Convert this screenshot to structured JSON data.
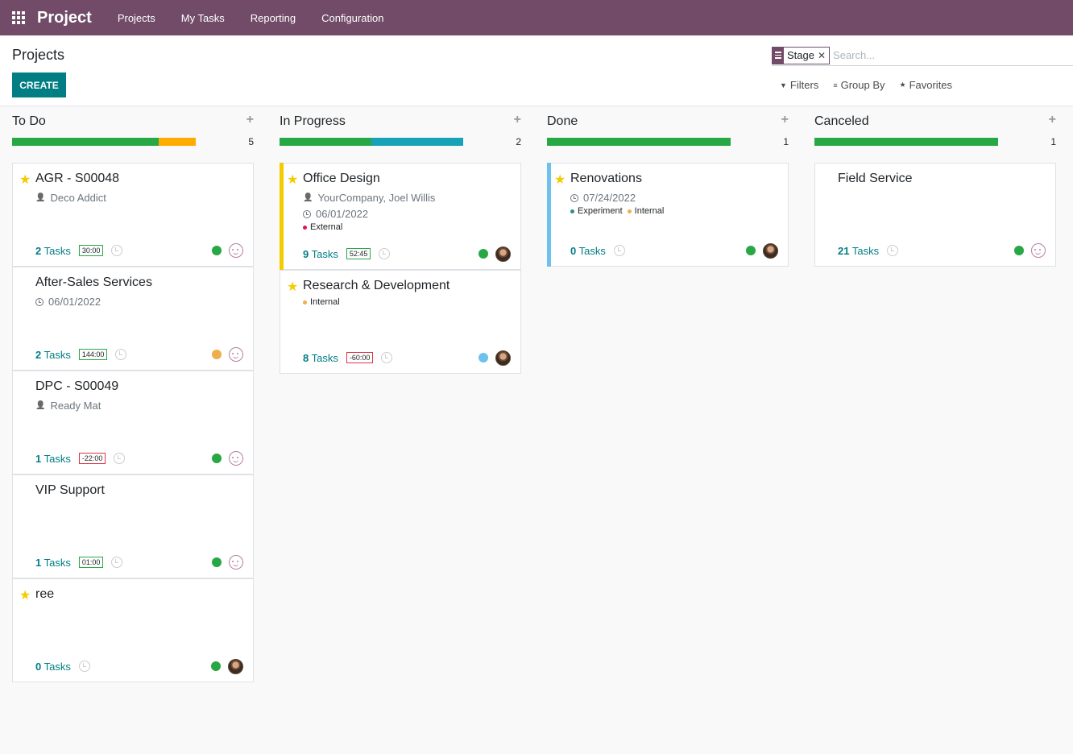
{
  "navbar": {
    "app_title": "Project",
    "menu": [
      "Projects",
      "My Tasks",
      "Reporting",
      "Configuration"
    ]
  },
  "control": {
    "breadcrumb": "Projects",
    "create_label": "CREATE",
    "facet_label": "Stage",
    "search_placeholder": "Search...",
    "filters_label": "Filters",
    "group_by_label": "Group By",
    "favorites_label": "Favorites"
  },
  "colors": {
    "brand": "#714b67",
    "primary": "#017e84",
    "green": "#28a745",
    "orange": "#f0ad4e",
    "star": "#f3cc00"
  },
  "columns": [
    {
      "title": "To Do",
      "count": "5",
      "progress": [
        {
          "color": "#28a745",
          "fraction": 0.8
        },
        {
          "color": "#ffac00",
          "fraction": 0.2
        }
      ],
      "cards": [
        {
          "name": "AGR - S00048",
          "starred": true,
          "customer": "Deco Addict",
          "date": "",
          "tags": [],
          "tasks_count": "2",
          "tasks_label": "Tasks",
          "hours": "30:00",
          "hours_negative": false,
          "status_color": "#28a745",
          "avatar": "smile",
          "ribbon": ""
        },
        {
          "name": "After-Sales Services",
          "starred": false,
          "customer": "",
          "date": "06/01/2022",
          "tags": [],
          "tasks_count": "2",
          "tasks_label": "Tasks",
          "hours": "144:00",
          "hours_negative": false,
          "status_color": "#f0ad4e",
          "avatar": "smile",
          "ribbon": ""
        },
        {
          "name": "DPC - S00049",
          "starred": false,
          "customer": "Ready Mat",
          "date": "",
          "tags": [],
          "tasks_count": "1",
          "tasks_label": "Tasks",
          "hours": "-22:00",
          "hours_negative": true,
          "status_color": "#28a745",
          "avatar": "smile",
          "ribbon": ""
        },
        {
          "name": "VIP Support",
          "starred": false,
          "customer": "",
          "date": "",
          "tags": [],
          "tasks_count": "1",
          "tasks_label": "Tasks",
          "hours": "01:00",
          "hours_negative": false,
          "status_color": "#28a745",
          "avatar": "smile",
          "ribbon": ""
        },
        {
          "name": "ree",
          "starred": true,
          "customer": "",
          "date": "",
          "tags": [],
          "tasks_count": "0",
          "tasks_label": "Tasks",
          "hours": "",
          "hours_negative": false,
          "status_color": "#28a745",
          "avatar": "photo",
          "ribbon": ""
        }
      ]
    },
    {
      "title": "In Progress",
      "count": "2",
      "progress": [
        {
          "color": "#28a745",
          "fraction": 0.5
        },
        {
          "color": "#17a2b8",
          "fraction": 0.5
        }
      ],
      "cards": [
        {
          "name": "Office Design",
          "starred": true,
          "customer": "YourCompany, Joel Willis",
          "date": "06/01/2022",
          "tags": [
            {
              "label": "External",
              "color": "#e0115f"
            }
          ],
          "tasks_count": "9",
          "tasks_label": "Tasks",
          "hours": "52:45",
          "hours_negative": false,
          "status_color": "#28a745",
          "avatar": "photo",
          "ribbon": "#f3cc00"
        },
        {
          "name": "Research & Development",
          "starred": true,
          "customer": "",
          "date": "",
          "tags": [
            {
              "label": "Internal",
              "color": "#f0ad4e"
            }
          ],
          "tasks_count": "8",
          "tasks_label": "Tasks",
          "hours": "-60:00",
          "hours_negative": true,
          "status_color": "#6cc1ed",
          "avatar": "photo",
          "ribbon": ""
        }
      ]
    },
    {
      "title": "Done",
      "count": "1",
      "progress": [
        {
          "color": "#28a745",
          "fraction": 1.0
        }
      ],
      "cards": [
        {
          "name": "Renovations",
          "starred": true,
          "customer": "",
          "date": "07/24/2022",
          "tags": [
            {
              "label": "Experiment",
              "color": "#2e8b8b"
            },
            {
              "label": "Internal",
              "color": "#f0ad4e"
            }
          ],
          "tasks_count": "0",
          "tasks_label": "Tasks",
          "hours": "",
          "hours_negative": false,
          "status_color": "#28a745",
          "avatar": "photo",
          "ribbon": "#6cc1ed"
        }
      ]
    },
    {
      "title": "Canceled",
      "count": "1",
      "progress": [
        {
          "color": "#28a745",
          "fraction": 1.0
        }
      ],
      "cards": [
        {
          "name": "Field Service",
          "starred": false,
          "customer": "",
          "date": "",
          "tags": [],
          "tasks_count": "21",
          "tasks_label": "Tasks",
          "hours": "",
          "hours_negative": false,
          "status_color": "#28a745",
          "avatar": "smile",
          "ribbon": ""
        }
      ]
    }
  ]
}
